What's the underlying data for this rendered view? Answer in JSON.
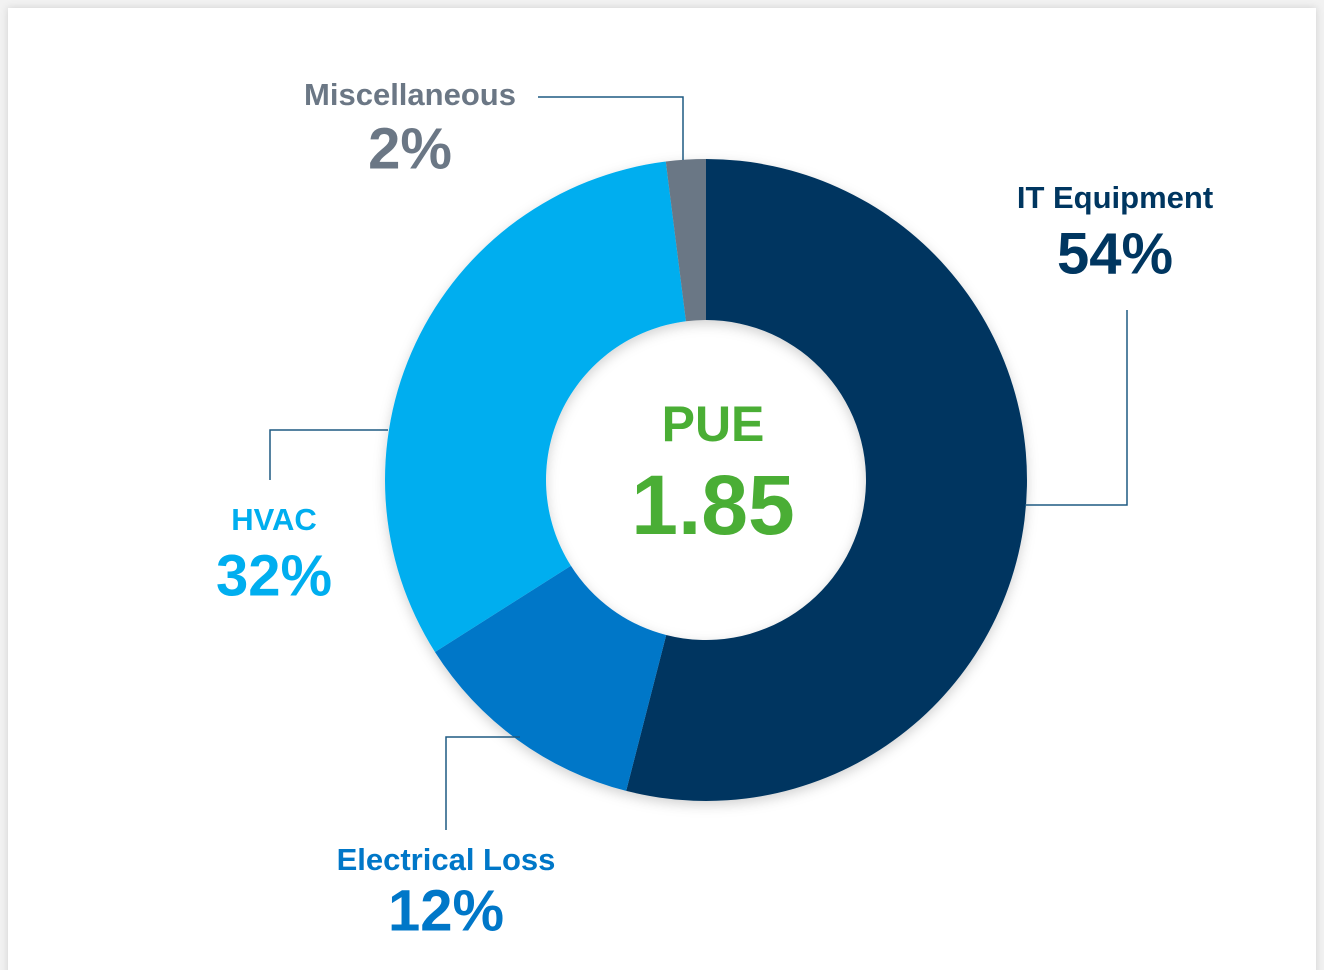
{
  "chart_data": {
    "type": "pie",
    "donut": true,
    "categories": [
      "IT Equipment",
      "Electrical Loss",
      "HVAC",
      "Miscellaneous"
    ],
    "values": [
      54,
      12,
      32,
      2
    ],
    "value_labels": [
      "54%",
      "12%",
      "32%",
      "2%"
    ],
    "colors": [
      "#003660",
      "#0077c8",
      "#00aeef",
      "#6b7785"
    ],
    "center_title": "PUE",
    "center_value": 1.85,
    "center_color": "#4aae35"
  }
}
